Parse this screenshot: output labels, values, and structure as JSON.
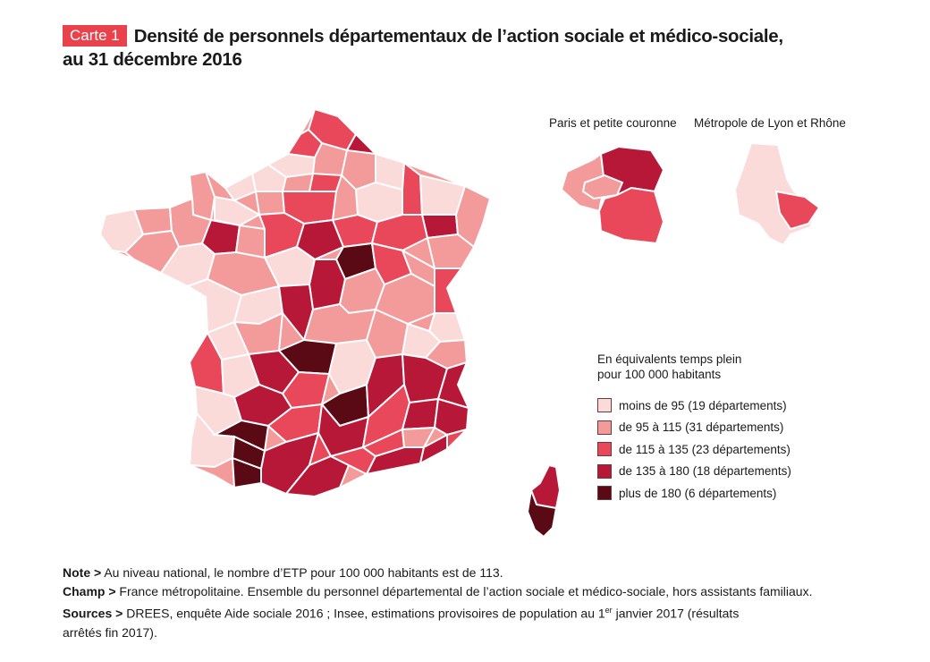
{
  "header": {
    "badge": "Carte 1",
    "title": "Densité de personnels départementaux de l’action sociale et médico-sociale,",
    "title_line2": "au 31 décembre 2016"
  },
  "insets": {
    "paris": "Paris et petite couronne",
    "lyon": "Métropole de Lyon et Rhône"
  },
  "legend": {
    "title_line1": "En équivalents temps plein",
    "title_line2": "pour 100 000 habitants",
    "classes": [
      {
        "label": "moins de 95 (19 départements)",
        "color": "#fbdada"
      },
      {
        "label": "de 95 à 115 (31 départements)",
        "color": "#f39a9a"
      },
      {
        "label": "de 115 à 135 (23 départements)",
        "color": "#e8485a"
      },
      {
        "label": "de 135 à 180 (18 départements)",
        "color": "#b81838"
      },
      {
        "label": "plus de 180 (6 départements)",
        "color": "#5a0a14"
      }
    ]
  },
  "notes": {
    "note_label": "Note >",
    "note_text": "Au niveau national, le nombre d’ETP pour 100 000 habitants est de 113.",
    "champ_label": "Champ >",
    "champ_text": "France métropolitaine. Ensemble du personnel départemental de l’action sociale et médico-sociale, hors assistants familiaux.",
    "sources_label": "Sources >",
    "sources_text_a": "DREES, enquête Aide sociale 2016 ; Insee, estimations provisoires de population au 1",
    "sources_sup": "er",
    "sources_text_b": "janvier 2017 (résultats",
    "sources_text_c": "arrêtés fin 2017)."
  }
}
